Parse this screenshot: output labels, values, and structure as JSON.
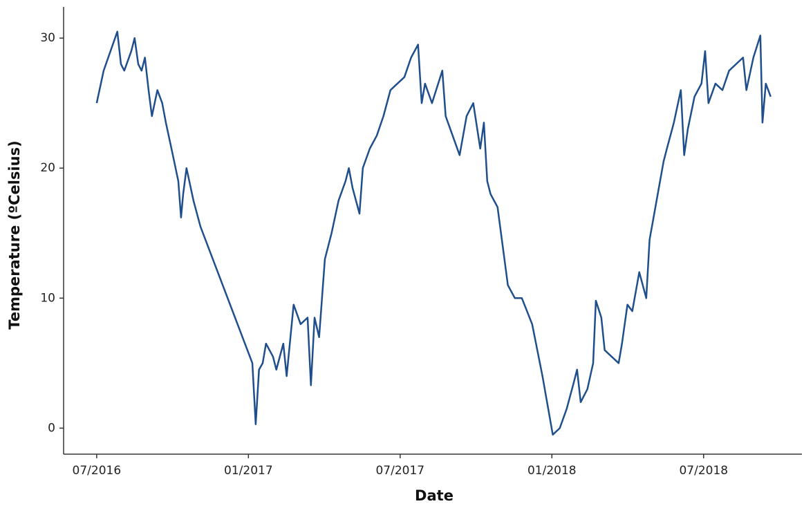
{
  "chart_data": {
    "type": "line",
    "x_label": "Date",
    "y_label": "Temperature (ºCelsius)",
    "x": [
      2016.5,
      2016.523,
      2016.568,
      2016.58,
      2016.591,
      2016.614,
      2016.625,
      2016.637,
      2016.648,
      2016.659,
      2016.671,
      2016.682,
      2016.7,
      2016.716,
      2016.728,
      2016.751,
      2016.769,
      2016.778,
      2016.785,
      2016.796,
      2016.819,
      2016.842,
      2017.013,
      2017.024,
      2017.035,
      2017.047,
      2017.058,
      2017.081,
      2017.092,
      2017.115,
      2017.126,
      2017.149,
      2017.172,
      2017.195,
      2017.206,
      2017.218,
      2017.233,
      2017.252,
      2017.274,
      2017.297,
      2017.32,
      2017.331,
      2017.343,
      2017.366,
      2017.377,
      2017.4,
      2017.423,
      2017.445,
      2017.468,
      2017.491,
      2017.514,
      2017.536,
      2017.559,
      2017.571,
      2017.582,
      2017.605,
      2017.639,
      2017.65,
      2017.673,
      2017.696,
      2017.719,
      2017.741,
      2017.764,
      2017.776,
      2017.787,
      2017.798,
      2017.821,
      2017.855,
      2017.878,
      2017.901,
      2017.935,
      2017.969,
      2018.003,
      2018.026,
      2018.049,
      2018.072,
      2018.083,
      2018.095,
      2018.117,
      2018.136,
      2018.145,
      2018.163,
      2018.174,
      2018.197,
      2018.22,
      2018.231,
      2018.249,
      2018.265,
      2018.288,
      2018.311,
      2018.322,
      2018.345,
      2018.368,
      2018.379,
      2018.402,
      2018.425,
      2018.436,
      2018.448,
      2018.47,
      2018.493,
      2018.505,
      2018.516,
      2018.539,
      2018.562,
      2018.584,
      2018.607,
      2018.63,
      2018.641,
      2018.664,
      2018.687,
      2018.694,
      2018.705,
      2018.721
    ],
    "series": [
      {
        "color": "#1f4e8c",
        "values": [
          25,
          27.5,
          30.5,
          28,
          27.5,
          29,
          30,
          28,
          27.5,
          28.5,
          26,
          24,
          26,
          25,
          23.5,
          21,
          19,
          16.2,
          18,
          20,
          17.5,
          15.5,
          5,
          0.3,
          4.5,
          5,
          6.5,
          5.5,
          4.5,
          6.5,
          4,
          9.5,
          8,
          8.5,
          3.3,
          8.5,
          7,
          13,
          15,
          17.5,
          19,
          20,
          18.5,
          16.5,
          20,
          21.5,
          22.5,
          24,
          26,
          26.5,
          27,
          28.5,
          29.5,
          25,
          26.5,
          25,
          27.5,
          24,
          22.5,
          21,
          24,
          25,
          21.5,
          23.5,
          19,
          18,
          17,
          11,
          10,
          10,
          8,
          4,
          -0.5,
          0,
          1.5,
          3.5,
          4.5,
          2,
          3,
          5,
          9.8,
          8.5,
          6,
          5.5,
          5,
          6.5,
          9.5,
          9,
          12,
          10,
          14.5,
          17.5,
          20.5,
          21.5,
          23.5,
          26,
          21,
          23,
          25.5,
          26.5,
          29,
          25,
          26.5,
          26,
          27.5,
          28,
          28.5,
          26,
          28.5,
          30.2,
          23.5,
          26.5,
          25.5
        ]
      }
    ],
    "xlim": [
      2016.391,
      2018.824
    ],
    "xticks": [
      {
        "value": 2016.5,
        "label": "07/2016"
      },
      {
        "value": 2017.0,
        "label": "01/2017"
      },
      {
        "value": 2017.5,
        "label": "07/2017"
      },
      {
        "value": 2018.0,
        "label": "01/2018"
      },
      {
        "value": 2018.5,
        "label": "07/2018"
      }
    ],
    "ylim": [
      -2,
      32.4
    ],
    "yticks": [
      0,
      10,
      20,
      30
    ],
    "grid": false
  }
}
